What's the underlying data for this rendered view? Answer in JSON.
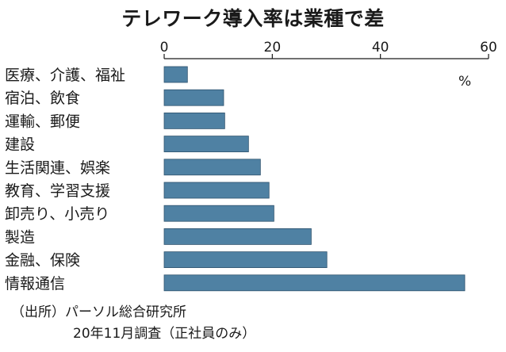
{
  "chart_data": {
    "type": "bar",
    "orientation": "horizontal",
    "title": "テレワーク導入率は業種で差",
    "unit": "%",
    "xlim": [
      0,
      60
    ],
    "xticks": [
      0,
      20,
      40,
      60
    ],
    "categories": [
      "医療、介護、福祉",
      "宿泊、飲食",
      "運輸、郵便",
      "建設",
      "生活関連、娯楽",
      "教育、学習支援",
      "卸売り、小売り",
      "製造",
      "金融、保険",
      "情報通信"
    ],
    "values": [
      4.3,
      11.0,
      11.2,
      15.6,
      17.8,
      19.4,
      20.3,
      27.2,
      30.1,
      55.6
    ],
    "bar_color": "#4f81a3",
    "grid": false,
    "legend": "none"
  },
  "source": {
    "line1": "（出所）パーソル総合研究所",
    "line2": "20年11月調査（正社員のみ）"
  }
}
